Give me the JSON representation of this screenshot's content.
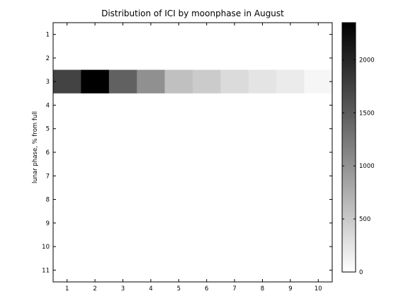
{
  "chart_data": {
    "type": "heatmap",
    "title": "Distribution of ICI by moonphase in August",
    "xlabel": "",
    "ylabel": "lunar phase, % from full",
    "x": [
      1,
      2,
      3,
      4,
      5,
      6,
      7,
      8,
      9,
      10
    ],
    "y": [
      1,
      2,
      3,
      4,
      5,
      6,
      7,
      8,
      9,
      10,
      11
    ],
    "xlim": [
      0.5,
      10.5
    ],
    "ylim": [
      0.5,
      11.5
    ],
    "y_reversed": true,
    "rows": [
      {
        "y": 1,
        "values": [
          0,
          0,
          0,
          0,
          0,
          0,
          0,
          0,
          0,
          0
        ]
      },
      {
        "y": 2,
        "values": [
          0,
          0,
          0,
          0,
          0,
          0,
          0,
          0,
          0,
          0
        ]
      },
      {
        "y": 3,
        "values": [
          1730,
          2350,
          1460,
          1020,
          580,
          480,
          330,
          250,
          180,
          80
        ]
      },
      {
        "y": 4,
        "values": [
          0,
          0,
          0,
          0,
          0,
          0,
          0,
          0,
          0,
          0
        ]
      },
      {
        "y": 5,
        "values": [
          0,
          0,
          0,
          0,
          0,
          0,
          0,
          0,
          0,
          0
        ]
      },
      {
        "y": 6,
        "values": [
          0,
          0,
          0,
          0,
          0,
          0,
          0,
          0,
          0,
          0
        ]
      },
      {
        "y": 7,
        "values": [
          0,
          0,
          0,
          0,
          0,
          0,
          0,
          0,
          0,
          0
        ]
      },
      {
        "y": 8,
        "values": [
          0,
          0,
          0,
          0,
          0,
          0,
          0,
          0,
          0,
          0
        ]
      },
      {
        "y": 9,
        "values": [
          0,
          0,
          0,
          0,
          0,
          0,
          0,
          0,
          0,
          0
        ]
      },
      {
        "y": 10,
        "values": [
          0,
          0,
          0,
          0,
          0,
          0,
          0,
          0,
          0,
          0
        ]
      },
      {
        "y": 11,
        "values": [
          0,
          0,
          0,
          0,
          0,
          0,
          0,
          0,
          0,
          0
        ]
      }
    ],
    "colormap": "gray-reversed",
    "colorbar": {
      "min": 0,
      "max": 2350,
      "ticks": [
        0,
        500,
        1000,
        1500,
        2000
      ]
    },
    "grid": false,
    "legend": "none"
  }
}
